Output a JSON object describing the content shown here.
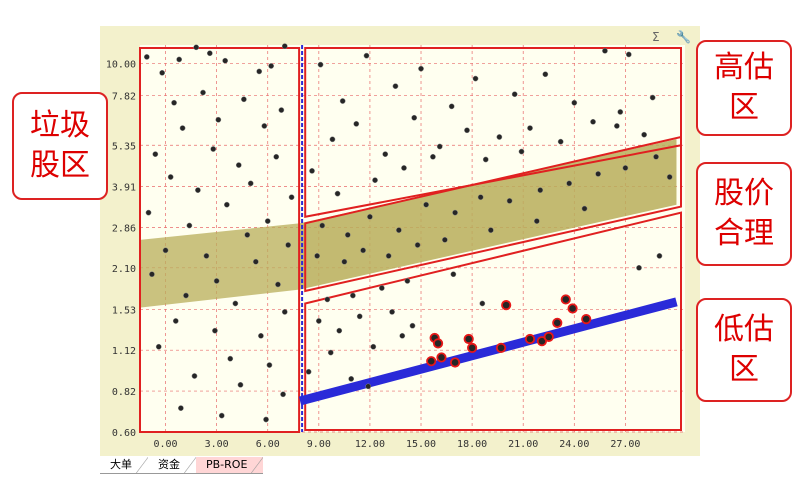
{
  "toolbar": {
    "sigma_icon": "Σ",
    "wrench_icon": "🔧"
  },
  "tabs": [
    {
      "label": "大单",
      "active": false
    },
    {
      "label": "资金",
      "active": false
    },
    {
      "label": "PB-ROE",
      "active": true
    }
  ],
  "callouts": {
    "junk": "垃圾股区",
    "high": "高估区",
    "fair": "股价合理",
    "low": "低估区"
  },
  "chart_data": {
    "type": "scatter",
    "title": "",
    "xlabel": "",
    "ylabel": "",
    "x_ticks": [
      "0.00",
      "3.00",
      "6.00",
      "9.00",
      "12.00",
      "15.00",
      "18.00",
      "21.00",
      "24.00",
      "27.00"
    ],
    "y_ticks": [
      "10.00",
      "7.82",
      "5.35",
      "3.91",
      "2.86",
      "2.10",
      "1.53",
      "1.12",
      "0.82",
      "0.60"
    ],
    "xlim": [
      -1.5,
      30.5
    ],
    "ylim": [
      0.6,
      11.5
    ],
    "y_scale": "log",
    "grid": true,
    "colors": {
      "plot_bg": "#fffff0",
      "frame_bg": "#f3f1cc",
      "grid": "#e86a6a",
      "point": "#262626",
      "band": "#b8ae5a",
      "lowline": "#2a2ad8",
      "highlight": "#e81818",
      "region_border": "#e02020"
    },
    "regions": {
      "junk_zone_x": [
        -1.5,
        7.9
      ],
      "divider_x": 7.9,
      "fair_band_upper": [
        [
          7.9,
          2.95
        ],
        [
          30.0,
          5.6
        ]
      ],
      "fair_band_lower": [
        [
          7.9,
          1.78
        ],
        [
          30.0,
          3.4
        ]
      ],
      "low_line": [
        [
          7.9,
          0.76
        ],
        [
          30.0,
          1.62
        ]
      ]
    },
    "highlighted_points": [
      {
        "x": 15.6,
        "y": 1.03
      },
      {
        "x": 15.8,
        "y": 1.23
      },
      {
        "x": 16.0,
        "y": 1.18
      },
      {
        "x": 16.2,
        "y": 1.06
      },
      {
        "x": 17.0,
        "y": 1.02
      },
      {
        "x": 17.8,
        "y": 1.22
      },
      {
        "x": 18.0,
        "y": 1.14
      },
      {
        "x": 19.7,
        "y": 1.14
      },
      {
        "x": 20.0,
        "y": 1.58
      },
      {
        "x": 21.4,
        "y": 1.22
      },
      {
        "x": 22.1,
        "y": 1.2
      },
      {
        "x": 22.5,
        "y": 1.24
      },
      {
        "x": 23.0,
        "y": 1.38
      },
      {
        "x": 23.5,
        "y": 1.65
      },
      {
        "x": 23.9,
        "y": 1.54
      },
      {
        "x": 24.7,
        "y": 1.42
      }
    ],
    "scatter_points": [
      {
        "x": -1.1,
        "y": 10.5
      },
      {
        "x": -0.2,
        "y": 9.3
      },
      {
        "x": 0.8,
        "y": 10.3
      },
      {
        "x": 1.8,
        "y": 11.3
      },
      {
        "x": 2.6,
        "y": 10.8
      },
      {
        "x": 3.5,
        "y": 10.2
      },
      {
        "x": 5.5,
        "y": 9.4
      },
      {
        "x": 6.2,
        "y": 9.8
      },
      {
        "x": 7.0,
        "y": 11.4
      },
      {
        "x": 0.5,
        "y": 7.4
      },
      {
        "x": 2.2,
        "y": 8.0
      },
      {
        "x": 4.6,
        "y": 7.6
      },
      {
        "x": 6.8,
        "y": 7.0
      },
      {
        "x": 1.0,
        "y": 6.1
      },
      {
        "x": 3.1,
        "y": 6.5
      },
      {
        "x": 5.8,
        "y": 6.2
      },
      {
        "x": -0.6,
        "y": 5.0
      },
      {
        "x": 2.8,
        "y": 5.2
      },
      {
        "x": 4.3,
        "y": 4.6
      },
      {
        "x": 6.5,
        "y": 4.9
      },
      {
        "x": 0.3,
        "y": 4.2
      },
      {
        "x": 1.9,
        "y": 3.8
      },
      {
        "x": 5.0,
        "y": 4.0
      },
      {
        "x": 7.4,
        "y": 3.6
      },
      {
        "x": -1.0,
        "y": 3.2
      },
      {
        "x": 3.6,
        "y": 3.4
      },
      {
        "x": 6.0,
        "y": 3.0
      },
      {
        "x": 1.4,
        "y": 2.9
      },
      {
        "x": 4.8,
        "y": 2.7
      },
      {
        "x": 7.2,
        "y": 2.5
      },
      {
        "x": 0.0,
        "y": 2.4
      },
      {
        "x": 2.4,
        "y": 2.3
      },
      {
        "x": 5.3,
        "y": 2.2
      },
      {
        "x": -0.8,
        "y": 2.0
      },
      {
        "x": 3.0,
        "y": 1.9
      },
      {
        "x": 6.6,
        "y": 1.85
      },
      {
        "x": 1.2,
        "y": 1.7
      },
      {
        "x": 4.1,
        "y": 1.6
      },
      {
        "x": 7.0,
        "y": 1.5
      },
      {
        "x": 0.6,
        "y": 1.4
      },
      {
        "x": 2.9,
        "y": 1.3
      },
      {
        "x": 5.6,
        "y": 1.25
      },
      {
        "x": -0.4,
        "y": 1.15
      },
      {
        "x": 3.8,
        "y": 1.05
      },
      {
        "x": 6.1,
        "y": 1.0
      },
      {
        "x": 1.7,
        "y": 0.92
      },
      {
        "x": 4.4,
        "y": 0.86
      },
      {
        "x": 6.9,
        "y": 0.8
      },
      {
        "x": 0.9,
        "y": 0.72
      },
      {
        "x": 3.3,
        "y": 0.68
      },
      {
        "x": 5.9,
        "y": 0.66
      },
      {
        "x": 9.1,
        "y": 9.9
      },
      {
        "x": 10.4,
        "y": 7.5
      },
      {
        "x": 11.8,
        "y": 10.6
      },
      {
        "x": 13.5,
        "y": 8.4
      },
      {
        "x": 15.0,
        "y": 9.6
      },
      {
        "x": 16.8,
        "y": 7.2
      },
      {
        "x": 18.2,
        "y": 8.9
      },
      {
        "x": 20.5,
        "y": 7.9
      },
      {
        "x": 22.3,
        "y": 9.2
      },
      {
        "x": 24.0,
        "y": 7.4
      },
      {
        "x": 25.8,
        "y": 11.0
      },
      {
        "x": 27.2,
        "y": 10.7
      },
      {
        "x": 28.6,
        "y": 7.7
      },
      {
        "x": 9.8,
        "y": 5.6
      },
      {
        "x": 11.2,
        "y": 6.3
      },
      {
        "x": 12.9,
        "y": 5.0
      },
      {
        "x": 14.6,
        "y": 6.6
      },
      {
        "x": 16.1,
        "y": 5.3
      },
      {
        "x": 17.7,
        "y": 6.0
      },
      {
        "x": 19.6,
        "y": 5.7
      },
      {
        "x": 21.4,
        "y": 6.1
      },
      {
        "x": 23.2,
        "y": 5.5
      },
      {
        "x": 25.1,
        "y": 6.4
      },
      {
        "x": 26.7,
        "y": 6.9
      },
      {
        "x": 8.6,
        "y": 4.4
      },
      {
        "x": 10.1,
        "y": 3.7
      },
      {
        "x": 12.3,
        "y": 4.1
      },
      {
        "x": 14.0,
        "y": 4.5
      },
      {
        "x": 15.7,
        "y": 4.9
      },
      {
        "x": 18.8,
        "y": 4.8
      },
      {
        "x": 20.9,
        "y": 5.1
      },
      {
        "x": 9.2,
        "y": 2.9
      },
      {
        "x": 10.7,
        "y": 2.7
      },
      {
        "x": 12.0,
        "y": 3.1
      },
      {
        "x": 13.7,
        "y": 2.8
      },
      {
        "x": 15.3,
        "y": 3.4
      },
      {
        "x": 17.0,
        "y": 3.2
      },
      {
        "x": 18.5,
        "y": 3.6
      },
      {
        "x": 20.2,
        "y": 3.5
      },
      {
        "x": 22.0,
        "y": 3.8
      },
      {
        "x": 23.7,
        "y": 4.0
      },
      {
        "x": 25.4,
        "y": 4.3
      },
      {
        "x": 27.0,
        "y": 4.5
      },
      {
        "x": 28.8,
        "y": 4.9
      },
      {
        "x": 29.6,
        "y": 4.2
      },
      {
        "x": 8.9,
        "y": 2.3
      },
      {
        "x": 10.5,
        "y": 2.2
      },
      {
        "x": 11.6,
        "y": 2.4
      },
      {
        "x": 13.1,
        "y": 2.3
      },
      {
        "x": 14.8,
        "y": 2.5
      },
      {
        "x": 16.4,
        "y": 2.6
      },
      {
        "x": 19.1,
        "y": 2.8
      },
      {
        "x": 21.8,
        "y": 3.0
      },
      {
        "x": 24.6,
        "y": 3.3
      },
      {
        "x": 9.5,
        "y": 1.65
      },
      {
        "x": 11.0,
        "y": 1.7
      },
      {
        "x": 12.7,
        "y": 1.8
      },
      {
        "x": 14.2,
        "y": 1.9
      },
      {
        "x": 16.9,
        "y": 2.0
      },
      {
        "x": 9.0,
        "y": 1.4
      },
      {
        "x": 10.2,
        "y": 1.3
      },
      {
        "x": 11.4,
        "y": 1.45
      },
      {
        "x": 13.3,
        "y": 1.5
      },
      {
        "x": 14.5,
        "y": 1.35
      },
      {
        "x": 18.6,
        "y": 1.6
      },
      {
        "x": 9.7,
        "y": 1.1
      },
      {
        "x": 12.2,
        "y": 1.15
      },
      {
        "x": 13.9,
        "y": 1.25
      },
      {
        "x": 8.4,
        "y": 0.95
      },
      {
        "x": 10.9,
        "y": 0.9
      },
      {
        "x": 11.9,
        "y": 0.85
      },
      {
        "x": 27.8,
        "y": 2.1
      },
      {
        "x": 29.0,
        "y": 2.3
      },
      {
        "x": 26.5,
        "y": 6.2
      },
      {
        "x": 28.1,
        "y": 5.8
      }
    ]
  }
}
